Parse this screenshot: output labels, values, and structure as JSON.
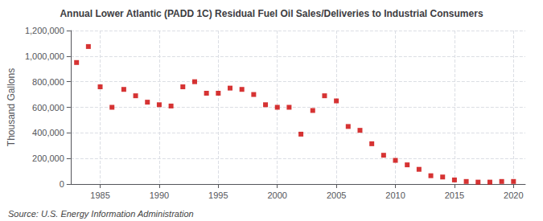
{
  "chart_data": {
    "type": "scatter",
    "title": "Annual Lower Atlantic (PADD 1C) Residual Fuel Oil Sales/Deliveries to Industrial Consumers",
    "ylabel": "Thousand Gallons",
    "annotations": [
      "Source: U.S. Energy Information Administration"
    ],
    "x": [
      1983,
      1984,
      1985,
      1986,
      1987,
      1988,
      1989,
      1990,
      1991,
      1992,
      1993,
      1994,
      1995,
      1996,
      1997,
      1998,
      1999,
      2000,
      2001,
      2002,
      2003,
      2004,
      2005,
      2006,
      2007,
      2008,
      2009,
      2010,
      2011,
      2012,
      2013,
      2014,
      2015,
      2016,
      2017,
      2018,
      2019,
      2020
    ],
    "values": [
      950000,
      1075000,
      760000,
      600000,
      740000,
      690000,
      640000,
      620000,
      610000,
      760000,
      800000,
      710000,
      710000,
      750000,
      740000,
      700000,
      620000,
      600000,
      600000,
      390000,
      575000,
      690000,
      650000,
      450000,
      420000,
      315000,
      225000,
      185000,
      150000,
      115000,
      65000,
      55000,
      32000,
      20000,
      15000,
      15000,
      20000,
      20000
    ],
    "color": "#cc0000",
    "marker": "square",
    "xlim": [
      1982.5,
      2021
    ],
    "xticks": [
      1985,
      1990,
      1995,
      2000,
      2005,
      2010,
      2015,
      2020
    ],
    "ylim": [
      0,
      1200000
    ],
    "yticks": [
      0,
      {
        "value": 200000,
        "label": "200,000"
      },
      {
        "value": 400000,
        "label": "400,000"
      },
      {
        "value": 600000,
        "label": "600,000"
      },
      {
        "value": 800000,
        "label": "800,000"
      },
      {
        "value": 1000000,
        "label": "1,000,000"
      },
      {
        "value": 1200000,
        "label": "1,200,000"
      }
    ],
    "grid": true
  }
}
